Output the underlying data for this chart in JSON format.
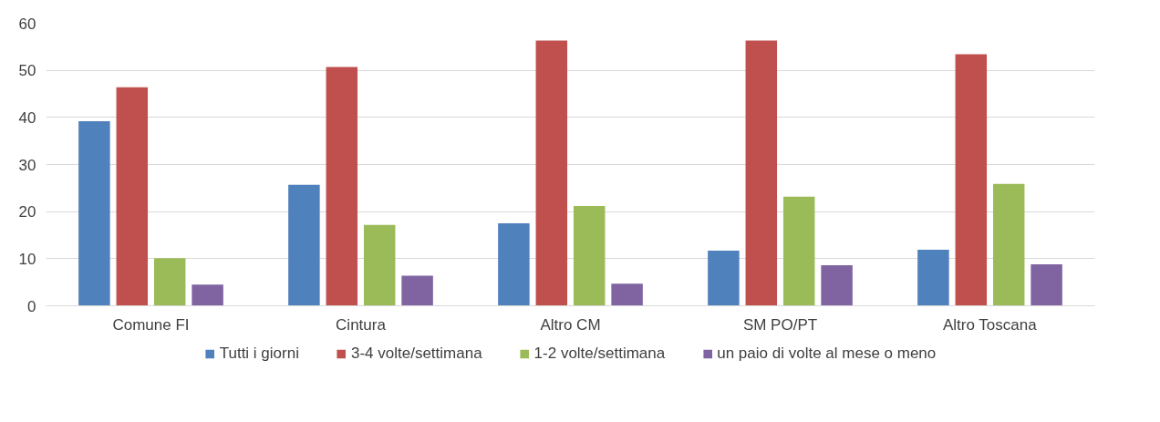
{
  "chart_data": {
    "type": "bar",
    "categories": [
      "Comune FI",
      "Cintura",
      "Altro CM",
      "SM PO/PT",
      "Altro Toscana"
    ],
    "series": [
      {
        "name": "Tutti i giorni",
        "color": "#4f81bd",
        "values": [
          39.2,
          25.7,
          17.5,
          11.7,
          11.9
        ]
      },
      {
        "name": "3-4 volte/settimana",
        "color": "#c0504d",
        "values": [
          46.4,
          50.7,
          56.3,
          56.3,
          53.4
        ]
      },
      {
        "name": "1-2 volte/settimana",
        "color": "#9bbb59",
        "values": [
          10.1,
          17.2,
          21.2,
          23.2,
          25.9
        ]
      },
      {
        "name": "un paio di volte al mese o meno",
        "color": "#8064a2",
        "values": [
          4.5,
          6.4,
          4.7,
          8.6,
          8.8
        ]
      }
    ],
    "ylim": [
      0,
      60
    ],
    "yticks": [
      0,
      10,
      20,
      30,
      40,
      50,
      60
    ],
    "grid": "y",
    "legend": "bottom"
  }
}
